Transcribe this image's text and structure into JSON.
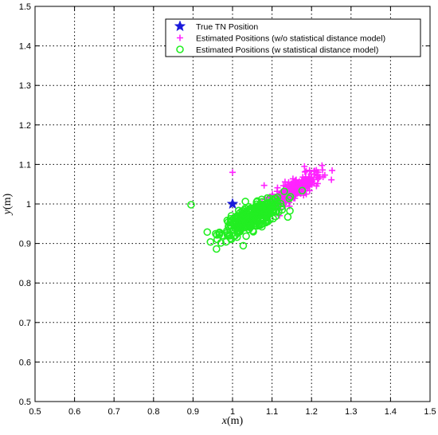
{
  "chart_data": {
    "type": "scatter",
    "title": "",
    "xlabel_var": "x",
    "xlabel_unit": "(m)",
    "ylabel_var": "y",
    "ylabel_unit": "(m)",
    "xlim": [
      0.5,
      1.5
    ],
    "ylim": [
      0.5,
      1.5
    ],
    "xticks": [
      "0.5",
      "0.6",
      "0.7",
      "0.8",
      "0.9",
      "1",
      "1.1",
      "1.2",
      "1.3",
      "1.4",
      "1.5"
    ],
    "yticks": [
      "0.5",
      "0.6",
      "0.7",
      "0.8",
      "0.9",
      "1",
      "1.1",
      "1.2",
      "1.3",
      "1.4",
      "1.5"
    ],
    "grid": true,
    "legend_position": "top-right",
    "series": [
      {
        "name": "True TN Position",
        "marker": "star",
        "color": "#1a1adb",
        "points": [
          [
            1.0,
            1.0
          ]
        ]
      },
      {
        "name": "Estimated Positions (w/o statistical distance model)",
        "marker": "plus",
        "color": "#ff22ff",
        "cluster": {
          "center": [
            1.155,
            1.035
          ],
          "spread": [
            0.035,
            0.022
          ],
          "count": 280,
          "slope": 0.55
        },
        "points": [
          [
            1.0,
            1.08
          ],
          [
            1.08,
            1.047
          ],
          [
            1.182,
            1.095
          ],
          [
            1.195,
            1.085
          ],
          [
            1.11,
            1.0
          ],
          [
            1.19,
            1.06
          ]
        ]
      },
      {
        "name": "Estimated Positions (w statistical distance model)",
        "marker": "circle",
        "color": "#22ee22",
        "cluster": {
          "center": [
            1.05,
            0.965
          ],
          "spread": [
            0.04,
            0.025
          ],
          "count": 320,
          "slope": 0.45
        },
        "points": [
          [
            0.895,
            0.998
          ],
          [
            0.997,
            0.97
          ],
          [
            1.103,
            0.963
          ],
          [
            1.09,
            1.003
          ],
          [
            1.085,
            0.99
          ],
          [
            1.005,
            0.955
          ]
        ]
      }
    ]
  }
}
